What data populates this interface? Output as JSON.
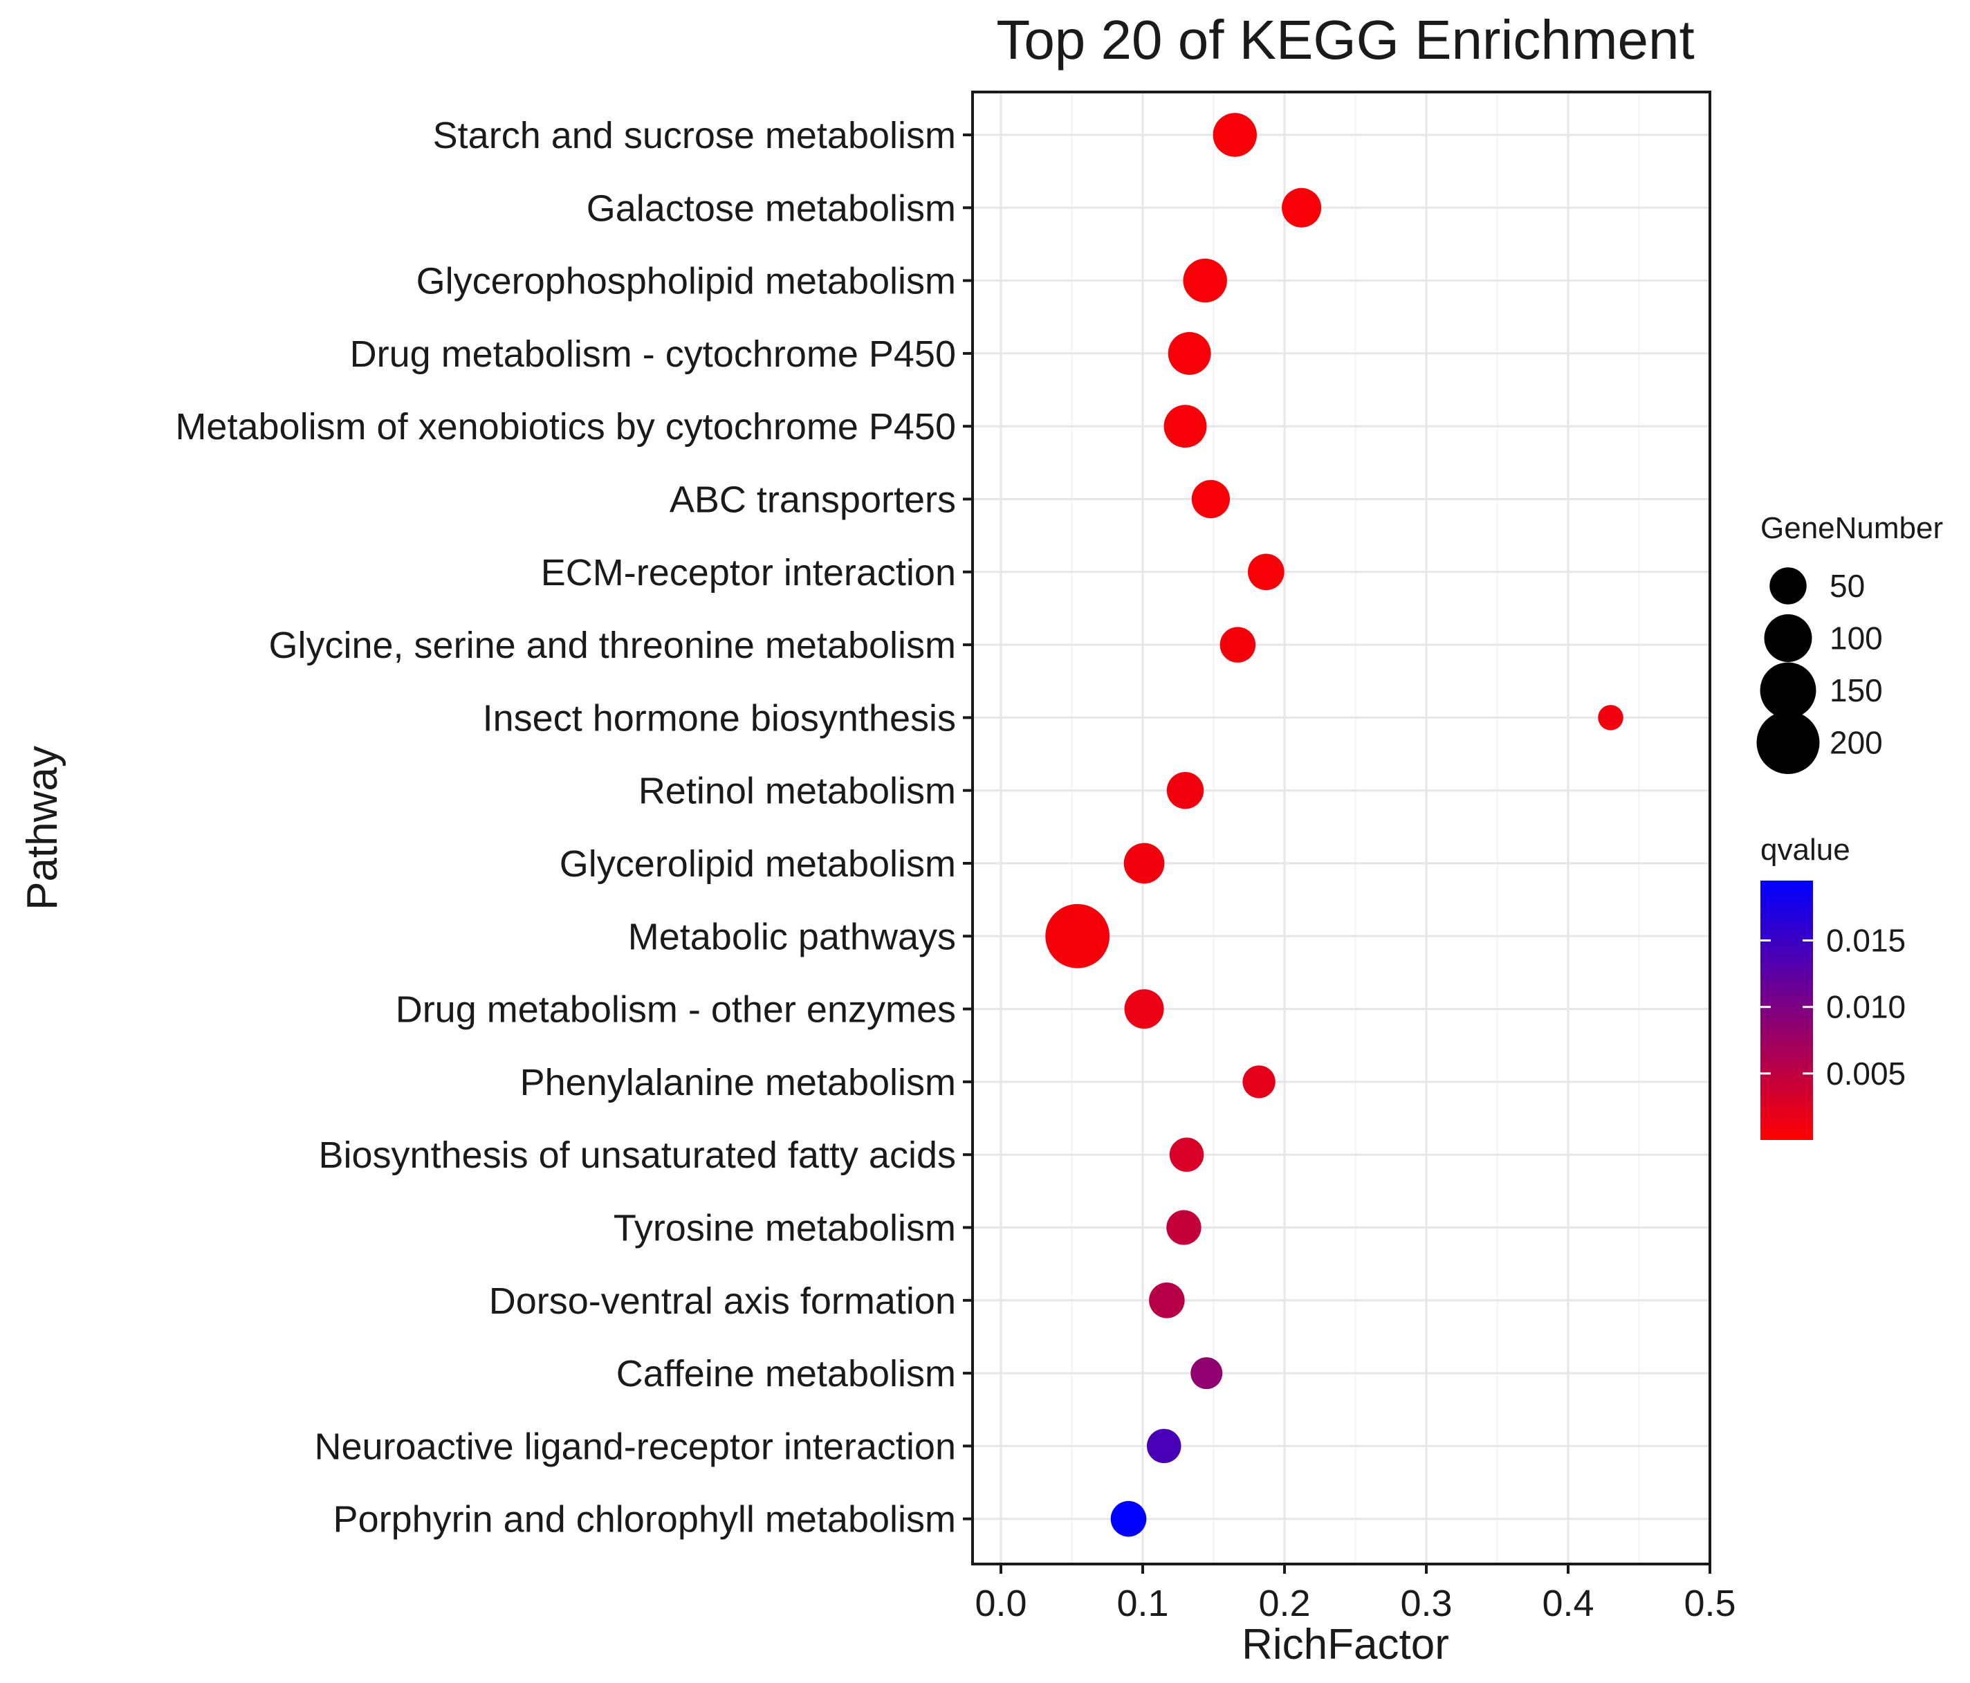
{
  "chart_data": {
    "type": "scatter",
    "title": "Top 20 of KEGG Enrichment",
    "xlabel": "RichFactor",
    "ylabel": "Pathway",
    "xlim": [
      -0.02,
      0.5
    ],
    "xticks": [
      0.0,
      0.1,
      0.2,
      0.3,
      0.4,
      0.5
    ],
    "xtick_labels": [
      "0.0",
      "0.1",
      "0.2",
      "0.3",
      "0.4",
      "0.5"
    ],
    "grid": true,
    "pathways": [
      {
        "name": "Starch and sucrose metabolism",
        "rich_factor": 0.165,
        "gene_number": 80,
        "qvalue": 0.0005
      },
      {
        "name": "Galactose metabolism",
        "rich_factor": 0.212,
        "gene_number": 60,
        "qvalue": 0.0005
      },
      {
        "name": "Glycerophospholipid metabolism",
        "rich_factor": 0.144,
        "gene_number": 80,
        "qvalue": 0.0005
      },
      {
        "name": "Drug metabolism - cytochrome P450",
        "rich_factor": 0.133,
        "gene_number": 75,
        "qvalue": 0.0005
      },
      {
        "name": "Metabolism of xenobiotics by cytochrome P450",
        "rich_factor": 0.13,
        "gene_number": 75,
        "qvalue": 0.0005
      },
      {
        "name": "ABC transporters",
        "rich_factor": 0.148,
        "gene_number": 55,
        "qvalue": 0.0005
      },
      {
        "name": "ECM-receptor interaction",
        "rich_factor": 0.187,
        "gene_number": 48,
        "qvalue": 0.0006
      },
      {
        "name": "Glycine, serine and threonine metabolism",
        "rich_factor": 0.167,
        "gene_number": 45,
        "qvalue": 0.0008
      },
      {
        "name": "Insect hormone biosynthesis",
        "rich_factor": 0.43,
        "gene_number": 15,
        "qvalue": 0.001
      },
      {
        "name": "Retinol metabolism",
        "rich_factor": 0.13,
        "gene_number": 50,
        "qvalue": 0.001
      },
      {
        "name": "Glycerolipid metabolism",
        "rich_factor": 0.101,
        "gene_number": 65,
        "qvalue": 0.001
      },
      {
        "name": "Metabolic pathways",
        "rich_factor": 0.054,
        "gene_number": 210,
        "qvalue": 0.0008
      },
      {
        "name": "Drug metabolism - other enzymes",
        "rich_factor": 0.101,
        "gene_number": 60,
        "qvalue": 0.0015
      },
      {
        "name": "Phenylalanine metabolism",
        "rich_factor": 0.182,
        "gene_number": 35,
        "qvalue": 0.002
      },
      {
        "name": "Biosynthesis of unsaturated fatty acids",
        "rich_factor": 0.131,
        "gene_number": 40,
        "qvalue": 0.003
      },
      {
        "name": "Tyrosine metabolism",
        "rich_factor": 0.129,
        "gene_number": 42,
        "qvalue": 0.0045
      },
      {
        "name": "Dorso-ventral axis formation",
        "rich_factor": 0.117,
        "gene_number": 45,
        "qvalue": 0.0055
      },
      {
        "name": "Caffeine metabolism",
        "rich_factor": 0.145,
        "gene_number": 32,
        "qvalue": 0.0085
      },
      {
        "name": "Neuroactive ligand-receptor interaction",
        "rich_factor": 0.115,
        "gene_number": 40,
        "qvalue": 0.014
      },
      {
        "name": "Porphyrin and chlorophyll metabolism",
        "rich_factor": 0.09,
        "gene_number": 45,
        "qvalue": 0.0195
      }
    ],
    "legend_size": {
      "title": "GeneNumber",
      "position": "right",
      "values": [
        50,
        100,
        150,
        200
      ],
      "labels": [
        "50",
        "100",
        "150",
        "200"
      ]
    },
    "legend_color": {
      "title": "qvalue",
      "position": "right",
      "range": [
        0.0,
        0.0195
      ],
      "ticks": [
        0.005,
        0.01,
        0.015
      ],
      "tick_labels": [
        "0.005",
        "0.010",
        "0.015"
      ],
      "low_color": "#ff0000",
      "high_color": "#0000ff"
    }
  }
}
